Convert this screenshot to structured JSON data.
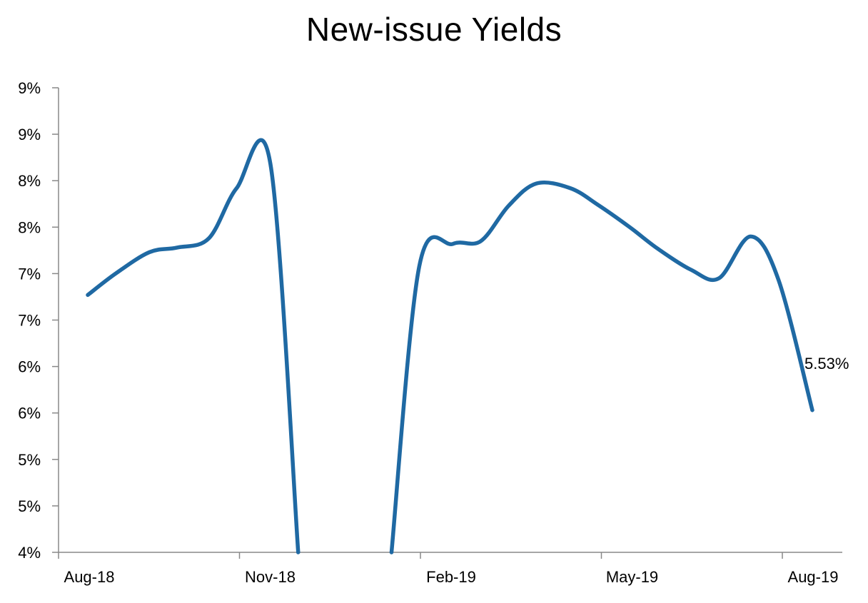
{
  "chart_data": {
    "type": "line",
    "title": "New-issue Yields",
    "xlabel": "",
    "ylabel": "",
    "y_tick_labels": [
      "4%",
      "5%",
      "5%",
      "6%",
      "6%",
      "7%",
      "7%",
      "8%",
      "8%",
      "9%",
      "9%"
    ],
    "ylim": [
      4.0,
      9.0
    ],
    "y_tick_step": 0.5,
    "x_tick_labels": [
      "Aug-18",
      "Nov-18",
      "Feb-19",
      "May-19",
      "Aug-19"
    ],
    "x": [
      "2018-08-01",
      "2018-08-15",
      "2018-09-01",
      "2018-09-15",
      "2018-10-01",
      "2018-10-15",
      "2018-11-01",
      "2018-11-15",
      "2018-12-01",
      "2018-12-15",
      "2019-01-01",
      "2019-01-15",
      "2019-02-01",
      "2019-02-15",
      "2019-03-01",
      "2019-03-15",
      "2019-04-01",
      "2019-04-15",
      "2019-05-01",
      "2019-05-15",
      "2019-06-01",
      "2019-06-15",
      "2019-07-01",
      "2019-07-15",
      "2019-08-01"
    ],
    "series": [
      {
        "values": [
          6.77,
          7.0,
          7.23,
          7.28,
          7.38,
          7.92,
          8.18,
          4.0,
          null,
          null,
          4.0,
          7.08,
          7.32,
          7.35,
          7.73,
          7.97,
          7.92,
          7.74,
          7.5,
          7.27,
          7.04,
          6.95,
          7.4,
          6.93,
          5.53
        ]
      }
    ],
    "end_label": "5.53%",
    "grid": false,
    "legend": "none",
    "line_color": "#1f69a3"
  }
}
